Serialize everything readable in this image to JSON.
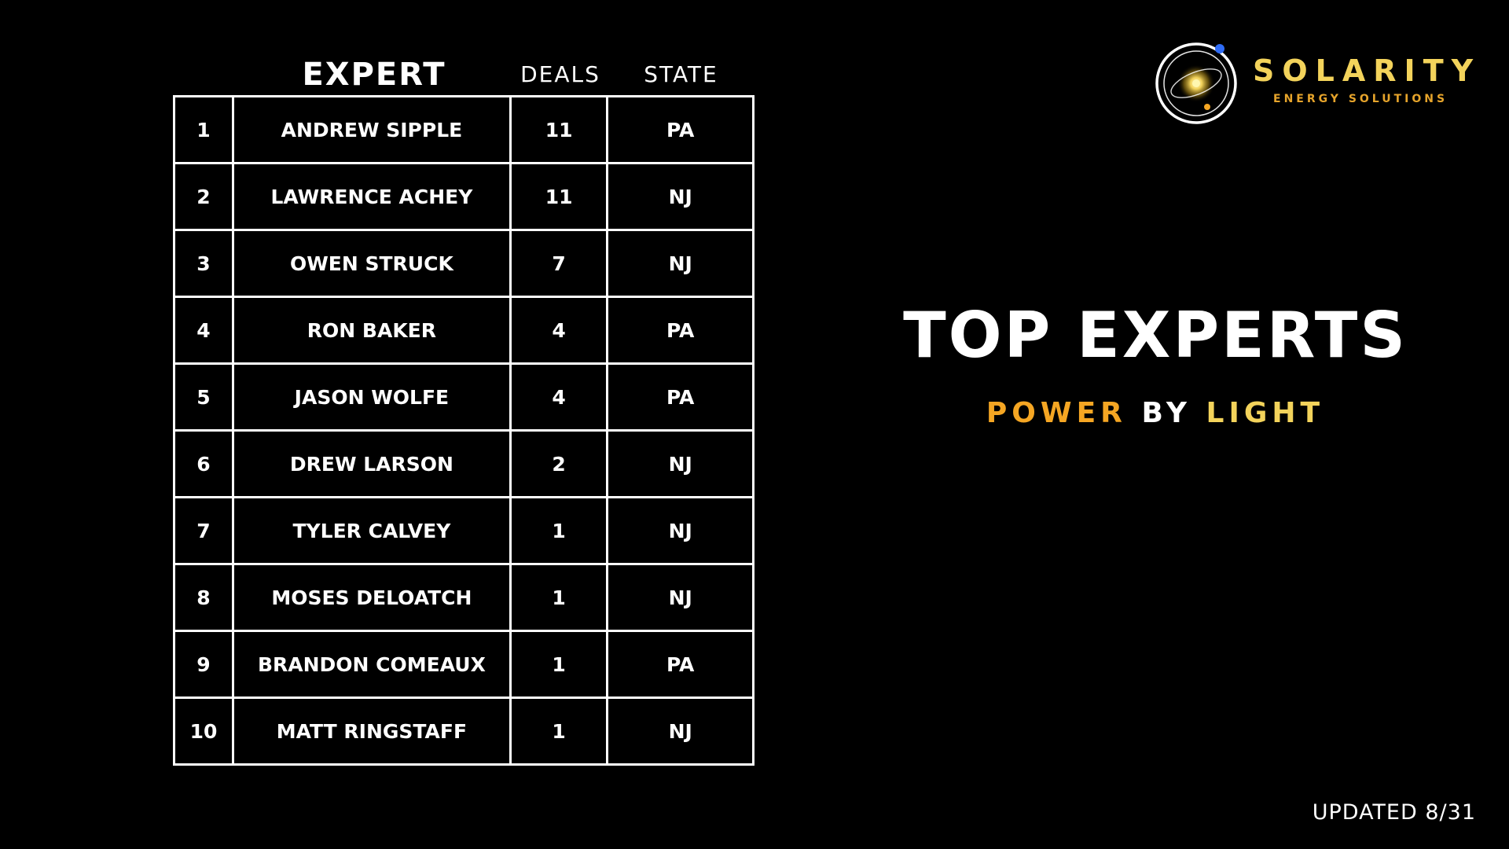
{
  "table": {
    "headers": {
      "rank": "",
      "expert": "EXPERT",
      "deals": "DEALS",
      "state": "STATE"
    },
    "rows": [
      {
        "rank": "1",
        "name": "ANDREW SIPPLE",
        "deals": "11",
        "state": "PA"
      },
      {
        "rank": "2",
        "name": "LAWRENCE ACHEY",
        "deals": "11",
        "state": "NJ"
      },
      {
        "rank": "3",
        "name": "OWEN STRUCK",
        "deals": "7",
        "state": "NJ"
      },
      {
        "rank": "4",
        "name": "RON BAKER",
        "deals": "4",
        "state": "PA"
      },
      {
        "rank": "5",
        "name": "JASON WOLFE",
        "deals": "4",
        "state": "PA"
      },
      {
        "rank": "6",
        "name": "DREW LARSON",
        "deals": "2",
        "state": "NJ"
      },
      {
        "rank": "7",
        "name": "TYLER CALVEY",
        "deals": "1",
        "state": "NJ"
      },
      {
        "rank": "8",
        "name": "MOSES DELOATCH",
        "deals": "1",
        "state": "NJ"
      },
      {
        "rank": "9",
        "name": "BRANDON COMEAUX",
        "deals": "1",
        "state": "PA"
      },
      {
        "rank": "10",
        "name": "MATT RINGSTAFF",
        "deals": "1",
        "state": "NJ"
      }
    ]
  },
  "brand": {
    "name": "SOLARITY",
    "tagline": "ENERGY SOLUTIONS",
    "logo_icon": "orbit-sun-icon",
    "colors": {
      "gold": "#f3d35b",
      "orange": "#f5a623",
      "amber": "#e6a42b",
      "blue_dot": "#2f6cf6"
    }
  },
  "hero": {
    "title": "TOP EXPERTS",
    "subtitle_power": "POWER",
    "subtitle_by": "BY",
    "subtitle_light": "LIGHT"
  },
  "footer": {
    "updated": "UPDATED 8/31"
  }
}
